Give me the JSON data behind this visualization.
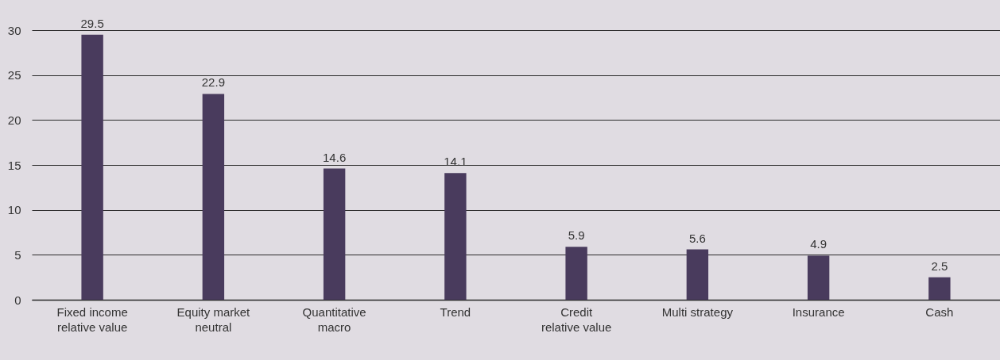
{
  "chart_data": {
    "type": "bar",
    "categories": [
      "Fixed income relative value",
      "Equity market neutral",
      "Quantitative macro",
      "Trend",
      "Credit relative value",
      "Multi strategy",
      "Insurance",
      "Cash"
    ],
    "values": [
      29.5,
      22.9,
      14.6,
      14.1,
      5.9,
      5.6,
      4.9,
      2.5
    ],
    "color": "#493b5d",
    "ylim": [
      0,
      30
    ],
    "yticks": [
      0,
      5,
      10,
      15,
      20,
      25,
      30
    ],
    "grid": "y",
    "data_labels": true
  }
}
